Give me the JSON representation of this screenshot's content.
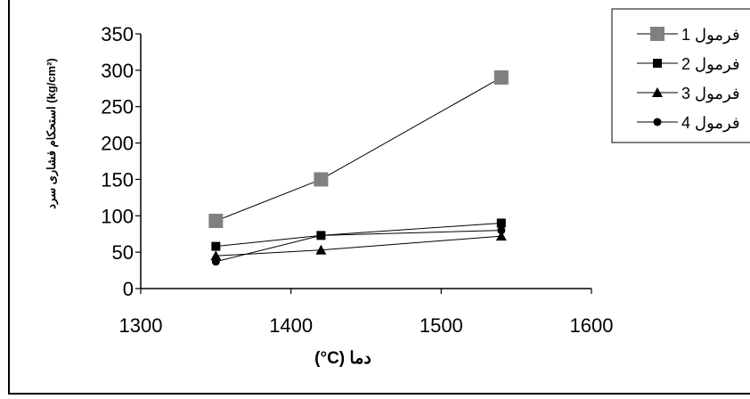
{
  "chart_data": {
    "type": "line",
    "xlabel": "(°C) دما",
    "ylabel": "استحکام فشاری سرد (kg/cm²)",
    "xlim": [
      1300,
      1600
    ],
    "ylim": [
      0,
      350
    ],
    "x_ticks": [
      "1300",
      "1400",
      "1500",
      "1600"
    ],
    "y_ticks": [
      "0",
      "50",
      "100",
      "150",
      "200",
      "250",
      "300",
      "350"
    ],
    "grid": false,
    "legend_position": "top-right",
    "x": [
      1350,
      1420,
      1540
    ],
    "series": [
      {
        "name": "فرمول 1",
        "marker": "square-large",
        "values": [
          93,
          150,
          290
        ]
      },
      {
        "name": "فرمول 2",
        "marker": "square",
        "values": [
          58,
          73,
          90
        ]
      },
      {
        "name": "فرمول 3",
        "marker": "triangle",
        "values": [
          45,
          53,
          72
        ]
      },
      {
        "name": "فرمول 4",
        "marker": "circle",
        "values": [
          37,
          73,
          80
        ]
      }
    ]
  }
}
